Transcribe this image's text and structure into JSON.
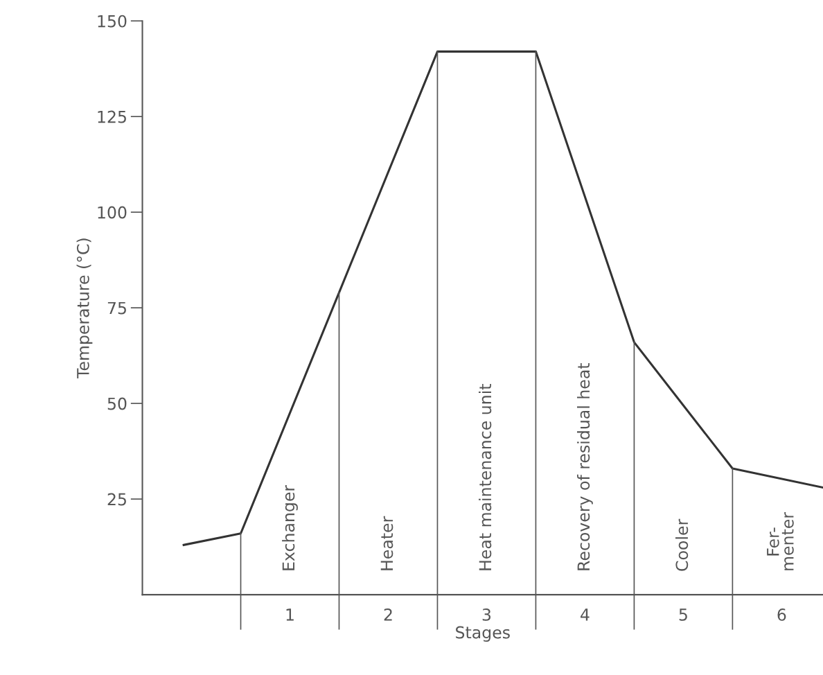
{
  "chart_data": {
    "type": "line",
    "xlabel": "Stages",
    "ylabel": "Temperature (°C)",
    "series": [
      {
        "color": "#333333",
        "x": [
          -0.58,
          0,
          1,
          2,
          3,
          4,
          5,
          5.92
        ],
        "values": [
          13,
          16,
          79,
          142,
          142,
          66,
          33,
          28
        ]
      }
    ],
    "xlim": [
      -1,
      5.92
    ],
    "ylim": [
      0,
      150
    ],
    "yticks": [
      25,
      50,
      75,
      100,
      125,
      150
    ],
    "xticks": [
      {
        "value": 0.5,
        "label": "1"
      },
      {
        "value": 1.5,
        "label": "2"
      },
      {
        "value": 2.5,
        "label": "3"
      },
      {
        "value": 3.5,
        "label": "4"
      },
      {
        "value": 4.5,
        "label": "5"
      },
      {
        "value": 5.5,
        "label": "6"
      }
    ],
    "ref_lines": [
      {
        "axis": "x",
        "value": 0,
        "color": "#555555"
      },
      {
        "axis": "x",
        "value": 1,
        "color": "#555555"
      },
      {
        "axis": "x",
        "value": 2,
        "color": "#555555"
      },
      {
        "axis": "x",
        "value": 3,
        "color": "#555555"
      },
      {
        "axis": "x",
        "value": 4,
        "color": "#555555"
      },
      {
        "axis": "x",
        "value": 5,
        "color": "#555555"
      }
    ],
    "annotations": [
      "Exchanger",
      "Heater",
      "Heat maintenance unit",
      "Recovery of residual heat",
      "Cooler",
      "Fer-\nmenter"
    ],
    "grid": false,
    "legend": false,
    "marker": "none",
    "line_style": "solid"
  }
}
